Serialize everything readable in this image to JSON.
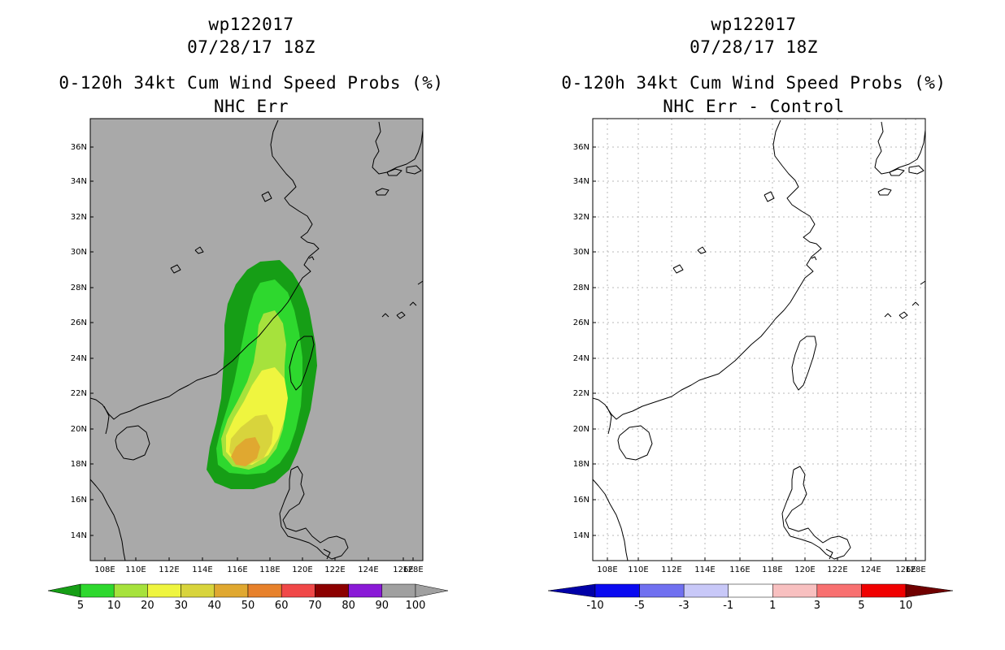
{
  "left_panel": {
    "storm_id": "wp122017",
    "datetime": "07/28/17 18Z",
    "product": "0-120h 34kt Cum Wind Speed Probs (%)",
    "subtitle": "NHC Err",
    "colorbar": {
      "labels": [
        "5",
        "10",
        "20",
        "30",
        "40",
        "50",
        "60",
        "70",
        "80",
        "90",
        "100"
      ],
      "colors": [
        "#169e16",
        "#2ed82e",
        "#a6e23c",
        "#eff53f",
        "#d8d43c",
        "#e0a830",
        "#e7812b",
        "#f04848",
        "#8c0000",
        "#8a1ad7",
        "#a0a0a0",
        "#a0a0a0"
      ]
    }
  },
  "right_panel": {
    "storm_id": "wp122017",
    "datetime": "07/28/17 18Z",
    "product": "0-120h 34kt Cum Wind Speed Probs (%)",
    "subtitle": "NHC Err - Control",
    "colorbar": {
      "labels": [
        "-10",
        "-5",
        "-3",
        "-1",
        "1",
        "3",
        "5",
        "10"
      ],
      "colors": [
        "#0000a8",
        "#0a0af0",
        "#7070f0",
        "#c8c8f8",
        "#ffffff",
        "#f8c0c0",
        "#f87070",
        "#f00000",
        "#700000"
      ]
    }
  },
  "map": {
    "lat_labels": [
      "36N",
      "34N",
      "32N",
      "30N",
      "28N",
      "26N",
      "24N",
      "22N",
      "20N",
      "18N",
      "16N",
      "14N"
    ],
    "lon_labels": [
      "108E",
      "110E",
      "112E",
      "114E",
      "116E",
      "118E",
      "120E",
      "122E",
      "124E",
      "126E",
      "128E"
    ],
    "background_color": "#a9a9a9",
    "probability_contours": [
      {
        "level": 5,
        "color": "#169e16"
      },
      {
        "level": 10,
        "color": "#2ed82e"
      },
      {
        "level": 20,
        "color": "#a6e23c"
      },
      {
        "level": 30,
        "color": "#eff53f"
      },
      {
        "level": 40,
        "color": "#d8d43c"
      },
      {
        "level": 50,
        "color": "#e0a830"
      }
    ]
  }
}
